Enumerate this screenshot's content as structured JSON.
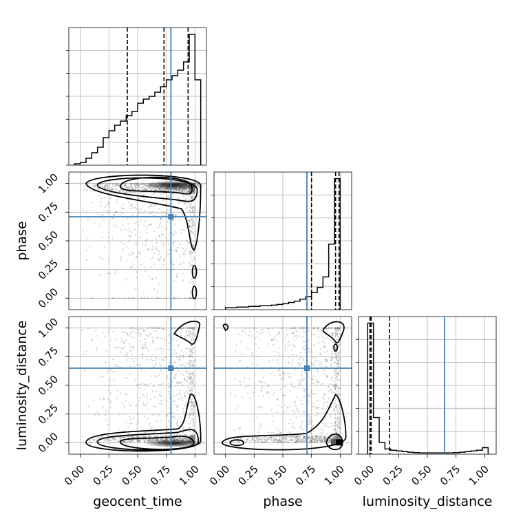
{
  "chart_data": {
    "type": "corner",
    "parameters": [
      "geocent_time",
      "phase",
      "luminosity_distance"
    ],
    "axis_labels": {
      "x": [
        "geocent_time",
        "phase",
        "luminosity_distance"
      ],
      "y": [
        "phase",
        "luminosity_distance"
      ]
    },
    "xlim": [
      -0.1,
      1.1
    ],
    "tick_values": [
      0.0,
      0.25,
      0.5,
      0.75,
      1.0
    ],
    "tick_labels": [
      "0.00",
      "0.25",
      "0.50",
      "0.75",
      "1.00"
    ],
    "truths": {
      "geocent_time": 0.79,
      "phase": 0.71,
      "luminosity_distance": 0.65
    },
    "truth_color": "#4682b4",
    "grid": true,
    "histograms": [
      {
        "parameter": "geocent_time",
        "bin_edges": [
          -0.05,
          0.0,
          0.05,
          0.1,
          0.15,
          0.2,
          0.25,
          0.3,
          0.35,
          0.4,
          0.45,
          0.5,
          0.55,
          0.6,
          0.65,
          0.7,
          0.75,
          0.8,
          0.85,
          0.9,
          0.95,
          1.0,
          1.05
        ],
        "counts": [
          1,
          2,
          5,
          9,
          13,
          20,
          25,
          29,
          32,
          36,
          39,
          45,
          48,
          50,
          53,
          57,
          62,
          65,
          69,
          75,
          95,
          62
        ],
        "quantiles": [
          0.41,
          0.73,
          0.94
        ]
      },
      {
        "parameter": "phase",
        "bin_edges": [
          0.0,
          0.05,
          0.1,
          0.15,
          0.2,
          0.25,
          0.3,
          0.35,
          0.4,
          0.45,
          0.5,
          0.55,
          0.6,
          0.65,
          0.7,
          0.75,
          0.8,
          0.85,
          0.9,
          0.95,
          1.0
        ],
        "counts": [
          1.5,
          1.5,
          2,
          2,
          2.5,
          2.5,
          3,
          3,
          3.5,
          4,
          4.5,
          5.5,
          6.5,
          8,
          10,
          13,
          17,
          25,
          50,
          100
        ],
        "quantiles": [
          0.75,
          0.96,
          0.99
        ]
      },
      {
        "parameter": "luminosity_distance",
        "bin_edges": [
          -0.02,
          0.03,
          0.08,
          0.13,
          0.18,
          0.23,
          0.28,
          0.33,
          0.38,
          0.43,
          0.48,
          0.53,
          0.58,
          0.63,
          0.68,
          0.73,
          0.78,
          0.83,
          0.88,
          0.93,
          0.98,
          1.03
        ],
        "counts": [
          100,
          28,
          9,
          4,
          3,
          2.5,
          2,
          1.5,
          1.2,
          1,
          1,
          1,
          1,
          1,
          1,
          1.2,
          1.5,
          2,
          2.5,
          3,
          5
        ],
        "quantiles": [
          0.0,
          0.01,
          0.17
        ]
      }
    ],
    "contour_levels": [
      "inner",
      "middle",
      "outer"
    ]
  }
}
